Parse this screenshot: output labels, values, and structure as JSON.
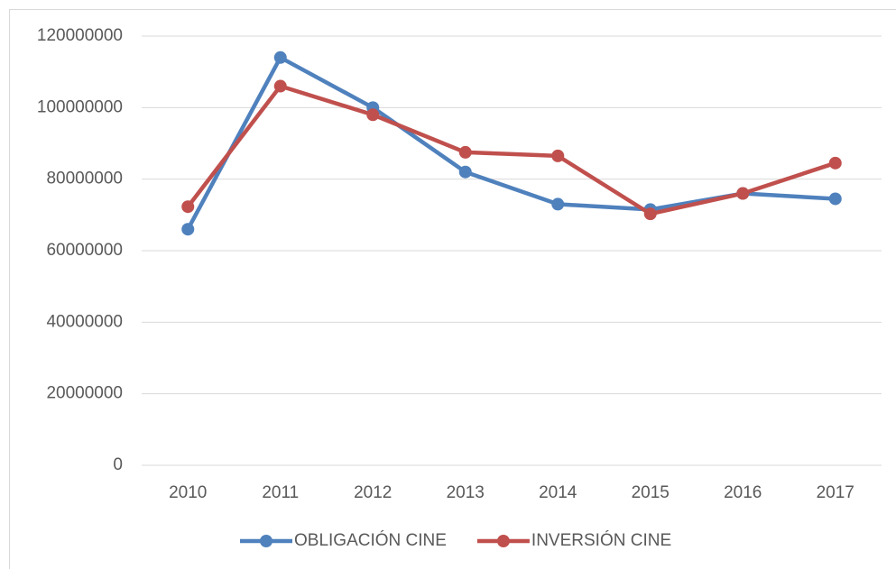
{
  "chart_data": {
    "type": "line",
    "categories": [
      "2010",
      "2011",
      "2012",
      "2013",
      "2014",
      "2015",
      "2016",
      "2017"
    ],
    "series": [
      {
        "name": "OBLIGACIÓN CINE",
        "color": "#4f81bd",
        "values": [
          66000000,
          114000000,
          100000000,
          82000000,
          73000000,
          71500000,
          76000000,
          74500000
        ]
      },
      {
        "name": "INVERSIÓN CINE",
        "color": "#c0504d",
        "values": [
          72300000,
          106000000,
          98000000,
          87500000,
          86500000,
          70300000,
          76000000,
          84500000
        ]
      }
    ],
    "ylim": [
      0,
      120000000
    ],
    "yticks": [
      0,
      20000000,
      40000000,
      60000000,
      80000000,
      100000000,
      120000000
    ],
    "grid": true,
    "legend": "bottom"
  }
}
